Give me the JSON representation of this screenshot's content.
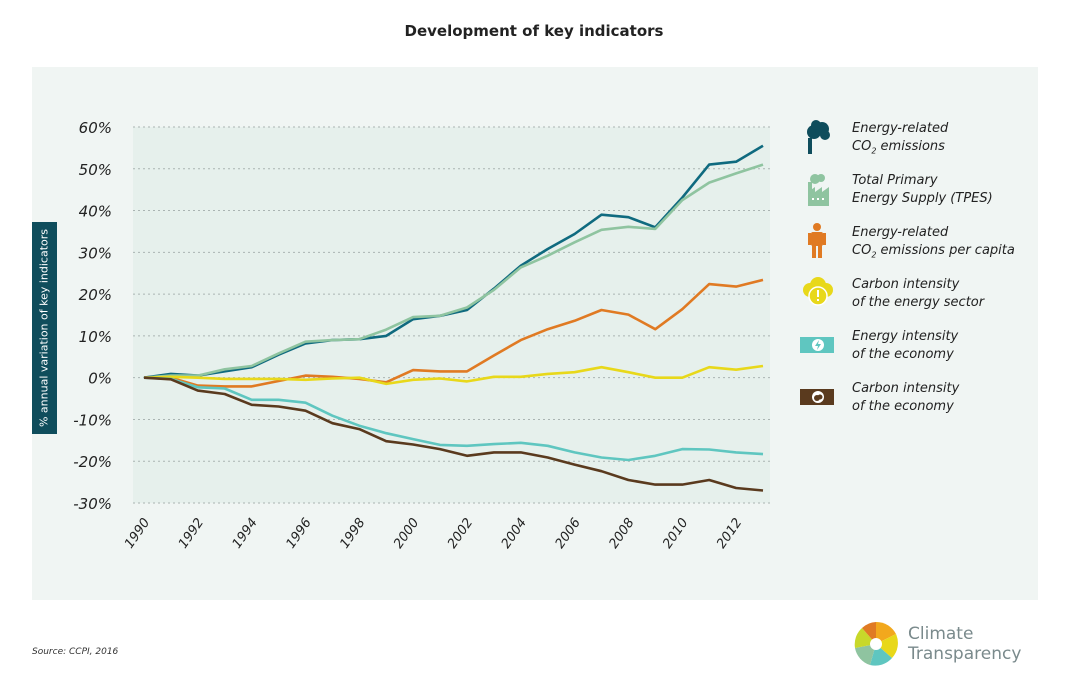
{
  "chart_data": {
    "type": "line",
    "title": "Development of key indicators",
    "ylabel": "% annual variation of key indicators",
    "xlabel": "",
    "x": [
      1990,
      1991,
      1992,
      1993,
      1994,
      1995,
      1996,
      1997,
      1998,
      1999,
      2000,
      2001,
      2002,
      2003,
      2004,
      2005,
      2006,
      2007,
      2008,
      2009,
      2010,
      2011,
      2012,
      2013
    ],
    "xtick_labels": [
      "1990",
      "1992",
      "1994",
      "1996",
      "1998",
      "2000",
      "2002",
      "2004",
      "2006",
      "2008",
      "2010",
      "2012"
    ],
    "xtick_values": [
      1990,
      1992,
      1994,
      1996,
      1998,
      2000,
      2002,
      2004,
      2006,
      2008,
      2010,
      2012
    ],
    "ytick_labels": [
      "60%",
      "50%",
      "40%",
      "30%",
      "20%",
      "10%",
      "0%",
      "-10%",
      "-20%",
      "-30%"
    ],
    "ytick_values": [
      60,
      50,
      40,
      30,
      20,
      10,
      0,
      -10,
      -20,
      -30
    ],
    "ylim": [
      -30,
      60
    ],
    "grid": true,
    "legend_position": "right",
    "series": [
      {
        "name": "Energy-related CO2 emissions",
        "color": "#0f6a7f",
        "icon": "factory-smoke-cloud-icon",
        "values": [
          0,
          0.9,
          0.5,
          1.5,
          2.5,
          5.5,
          8.2,
          9,
          9.2,
          10,
          14,
          14.8,
          16.2,
          21.3,
          26.8,
          30.8,
          34.4,
          39,
          38.4,
          36,
          43.1,
          51,
          51.7,
          55.5
        ]
      },
      {
        "name": "Total Primary Energy Supply (TPES)",
        "color": "#8fc4a0",
        "icon": "factory-icon",
        "values": [
          0,
          0.5,
          0.5,
          2,
          2.8,
          5.8,
          8.6,
          9,
          9.2,
          11.5,
          14.5,
          14.8,
          16.8,
          21,
          26.4,
          29.2,
          32.4,
          35.4,
          36.1,
          35.6,
          42.5,
          46.7,
          48.9,
          51
        ]
      },
      {
        "name": "Energy-related CO2 emissions per capita",
        "color": "#e07a23",
        "icon": "person-icon",
        "values": [
          0,
          0,
          -1.9,
          -2.1,
          -2.1,
          -0.8,
          0.5,
          0.2,
          -0.3,
          -1.1,
          1.8,
          1.5,
          1.5,
          5.3,
          9,
          11.6,
          13.6,
          16.2,
          15.1,
          11.6,
          16.4,
          22.4,
          21.8,
          23.4
        ]
      },
      {
        "name": "Carbon intensity of the energy sector",
        "color": "#e8d81a",
        "icon": "cloud-warning-icon",
        "values": [
          0,
          0.2,
          0,
          -0.3,
          -0.3,
          -0.3,
          -0.5,
          -0.2,
          0,
          -1.5,
          -0.5,
          -0.2,
          -0.9,
          0.2,
          0.2,
          0.9,
          1.3,
          2.5,
          1.3,
          0,
          0,
          2.5,
          1.9,
          2.8
        ]
      },
      {
        "name": "Energy intensity of the economy",
        "color": "#5fc6c0",
        "icon": "banknote-lightning-icon",
        "values": [
          0,
          -0.3,
          -2.3,
          -2.6,
          -5.3,
          -5.3,
          -6,
          -9.1,
          -11.5,
          -13.3,
          -14.7,
          -16.1,
          -16.3,
          -15.9,
          -15.6,
          -16.3,
          -17.9,
          -19.1,
          -19.7,
          -18.7,
          -17.1,
          -17.2,
          -17.9,
          -18.3
        ]
      },
      {
        "name": "Carbon intensity of the economy",
        "color": "#5a3a1e",
        "icon": "banknote-cloud-icon",
        "values": [
          0,
          -0.4,
          -3.1,
          -3.9,
          -6.5,
          -6.9,
          -7.9,
          -10.9,
          -12.3,
          -15.2,
          -16,
          -17.1,
          -18.7,
          -17.9,
          -17.9,
          -19.1,
          -20.8,
          -22.4,
          -24.5,
          -25.6,
          -25.6,
          -24.5,
          -26.4,
          -27
        ]
      }
    ]
  },
  "legend": [
    {
      "line1": "Energy-related",
      "line2a": "CO",
      "sub": "2",
      "line2b": " emissions"
    },
    {
      "line1": "Total Primary",
      "line2a": "Energy Supply (TPES)",
      "sub": "",
      "line2b": ""
    },
    {
      "line1": "Energy-related",
      "line2a": "CO",
      "sub": "2",
      "line2b": " emissions per capita"
    },
    {
      "line1": "Carbon intensity",
      "line2a": "of the energy sector",
      "sub": "",
      "line2b": ""
    },
    {
      "line1": "Energy intensity",
      "line2a": "of the economy",
      "sub": "",
      "line2b": ""
    },
    {
      "line1": "Carbon intensity",
      "line2a": "of the economy",
      "sub": "",
      "line2b": ""
    }
  ],
  "source": "Source: CCPI, 2016",
  "logo": {
    "line1": "Climate",
    "line2": "Transparency"
  }
}
